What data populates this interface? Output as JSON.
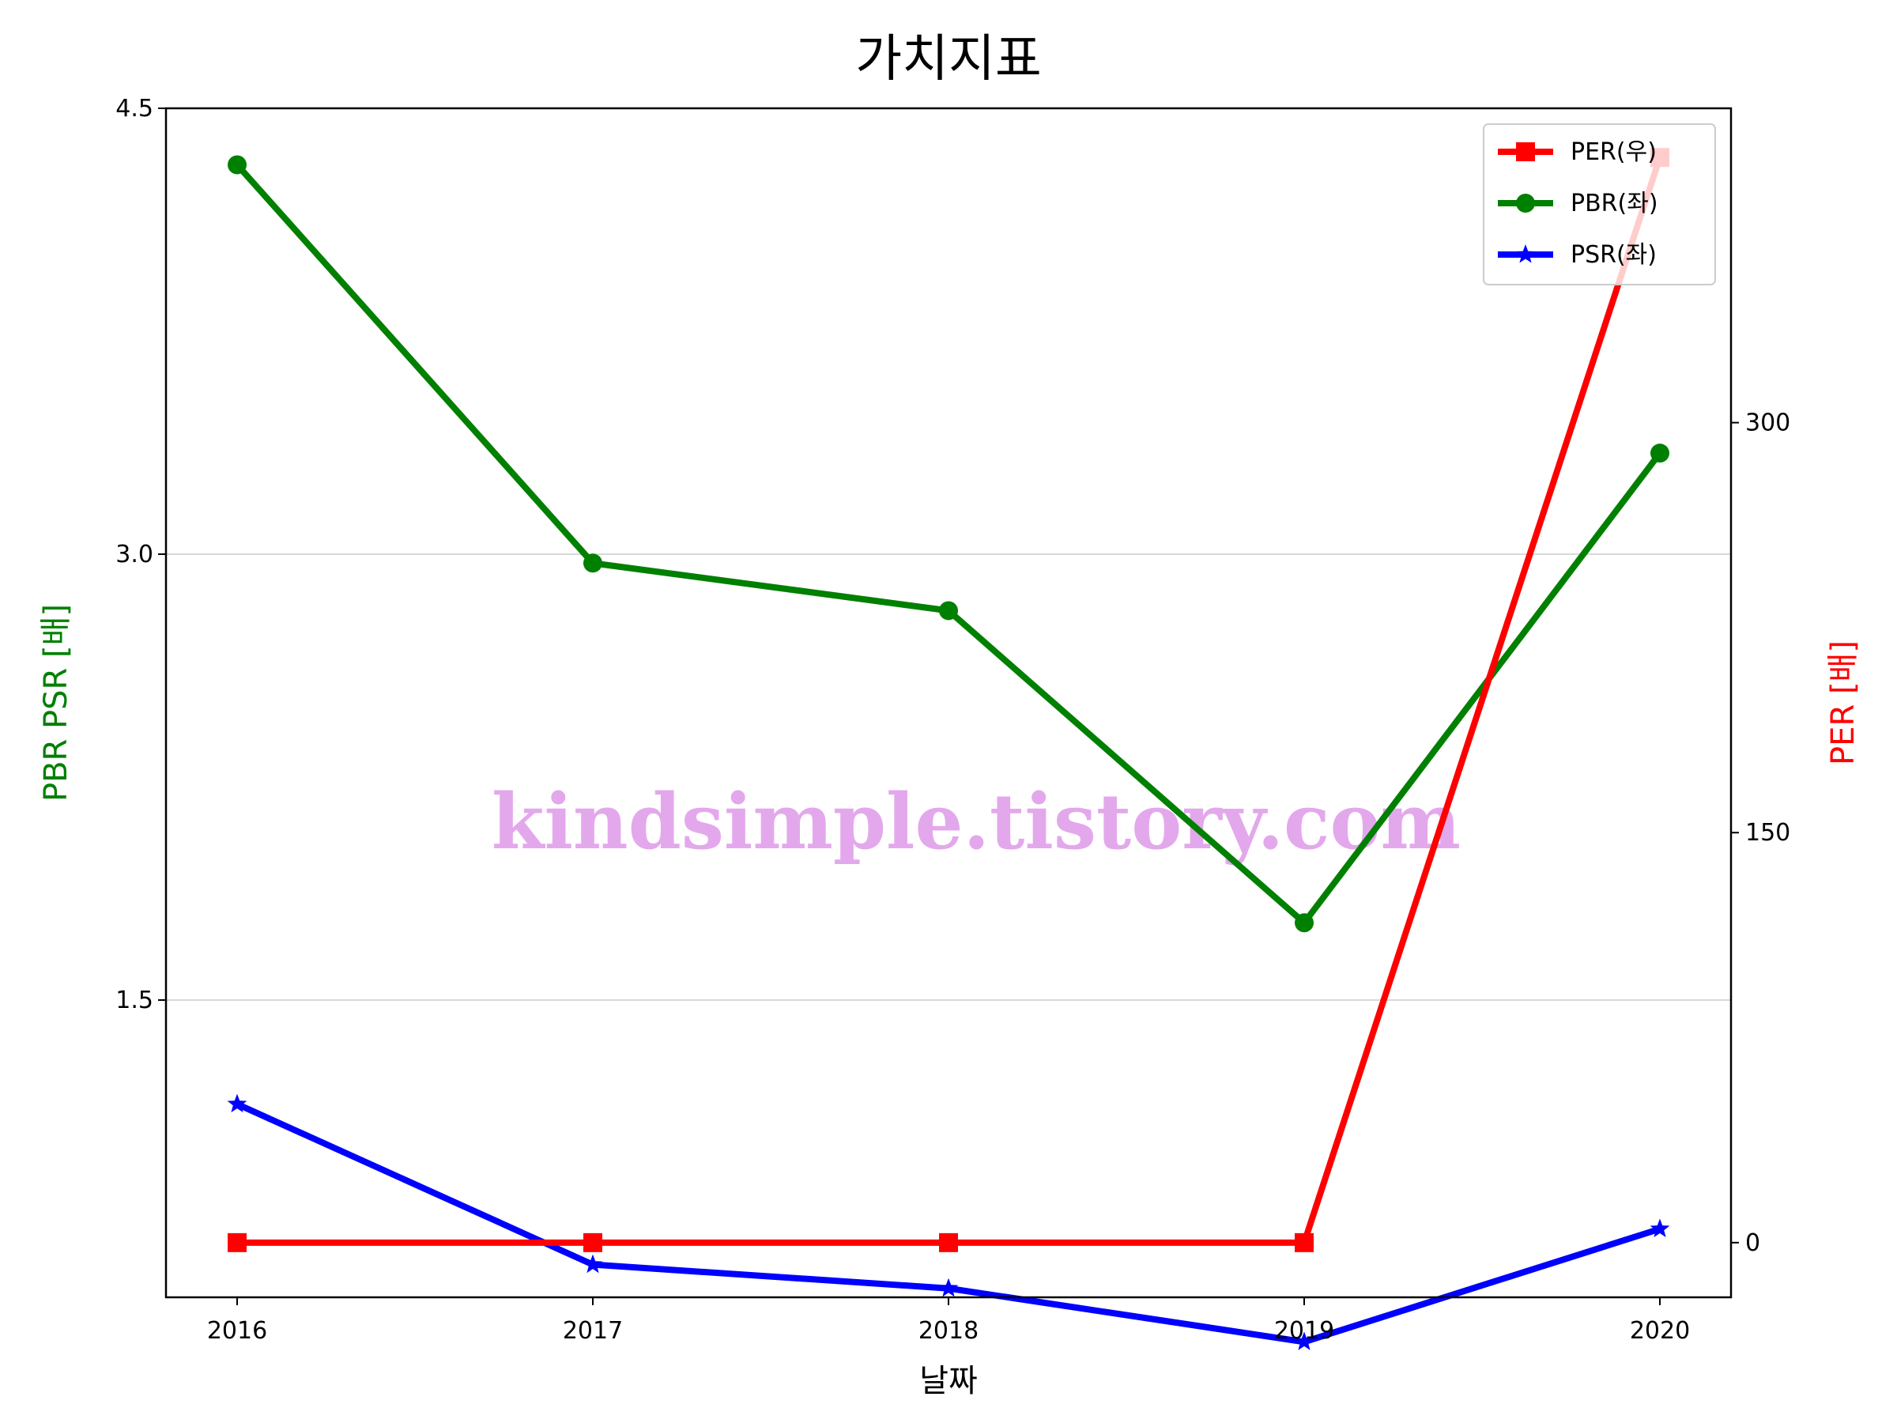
{
  "chart_data": {
    "type": "line",
    "title": "가치지표",
    "xlabel": "날짜",
    "ylabel_left": "PBR PSR [배]",
    "ylabel_right": "PER [배]",
    "categories": [
      "2016",
      "2017",
      "2018",
      "2019",
      "2020"
    ],
    "ylim_left": [
      0.5,
      4.5
    ],
    "ylim_right": [
      -20,
      415
    ],
    "yticks_left": [
      "1.5",
      "3.0",
      "4.5"
    ],
    "yticks_right": [
      "0",
      "150",
      "300"
    ],
    "grid": "horizontal (left axis)",
    "legend_position": "top-right",
    "series": [
      {
        "name": "PER(우)",
        "axis": "right",
        "color": "#ff0000",
        "marker": "square",
        "values": [
          0,
          0,
          0,
          0,
          397
        ]
      },
      {
        "name": "PBR(좌)",
        "axis": "left",
        "color": "#008000",
        "marker": "circle",
        "values": [
          4.31,
          2.97,
          2.81,
          1.76,
          3.34
        ]
      },
      {
        "name": "PSR(좌)",
        "axis": "left",
        "color": "#0000ff",
        "marker": "star",
        "values": [
          1.15,
          0.61,
          0.53,
          0.35,
          0.73
        ]
      }
    ],
    "watermark": "kindsimple.tistory.com"
  }
}
